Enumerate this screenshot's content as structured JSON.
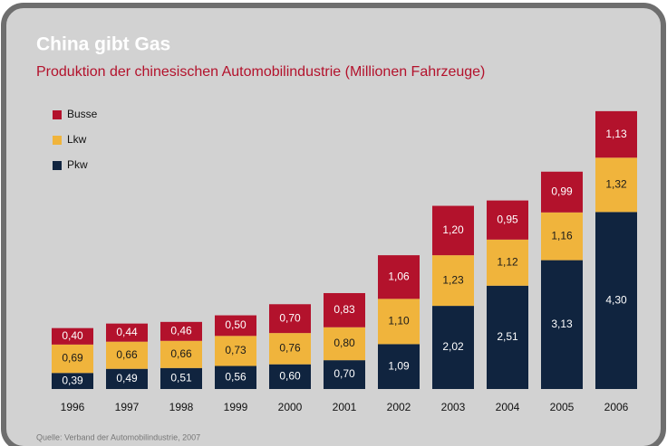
{
  "chart_data": {
    "type": "stacked_bar",
    "title": "China gibt Gas",
    "subtitle": "Produktion der chinesischen Automobilindustrie (Millionen Fahrzeuge)",
    "source": "Quelle: Verband der Automobilindustrie, 2007",
    "categories": [
      "1996",
      "1997",
      "1998",
      "1999",
      "2000",
      "2001",
      "2002",
      "2003",
      "2004",
      "2005",
      "2006"
    ],
    "series": [
      {
        "name": "Busse",
        "color": "#b3122c",
        "values": [
          0.4,
          0.44,
          0.46,
          0.5,
          0.7,
          0.83,
          1.06,
          1.2,
          0.95,
          0.99,
          1.13
        ],
        "value_labels": [
          "0,40",
          "0,44",
          "0,46",
          "0,50",
          "0,70",
          "0,83",
          "1,06",
          "1,20",
          "0,95",
          "0,99",
          "1,13"
        ]
      },
      {
        "name": "Lkw",
        "color": "#f0b43c",
        "values": [
          0.69,
          0.66,
          0.66,
          0.73,
          0.76,
          0.8,
          1.1,
          1.23,
          1.12,
          1.16,
          1.32
        ],
        "value_labels": [
          "0,69",
          "0,66",
          "0,66",
          "0,73",
          "0,76",
          "0,80",
          "1,10",
          "1,23",
          "1,12",
          "1,16",
          "1,32"
        ]
      },
      {
        "name": "Pkw",
        "color": "#10243f",
        "values": [
          0.39,
          0.49,
          0.51,
          0.56,
          0.6,
          0.7,
          1.09,
          2.02,
          2.51,
          3.13,
          4.3
        ],
        "value_labels": [
          "0,39",
          "0,49",
          "0,51",
          "0,56",
          "0,60",
          "0,70",
          "1,09",
          "2,02",
          "2,51",
          "3,13",
          "4,30"
        ]
      }
    ]
  }
}
